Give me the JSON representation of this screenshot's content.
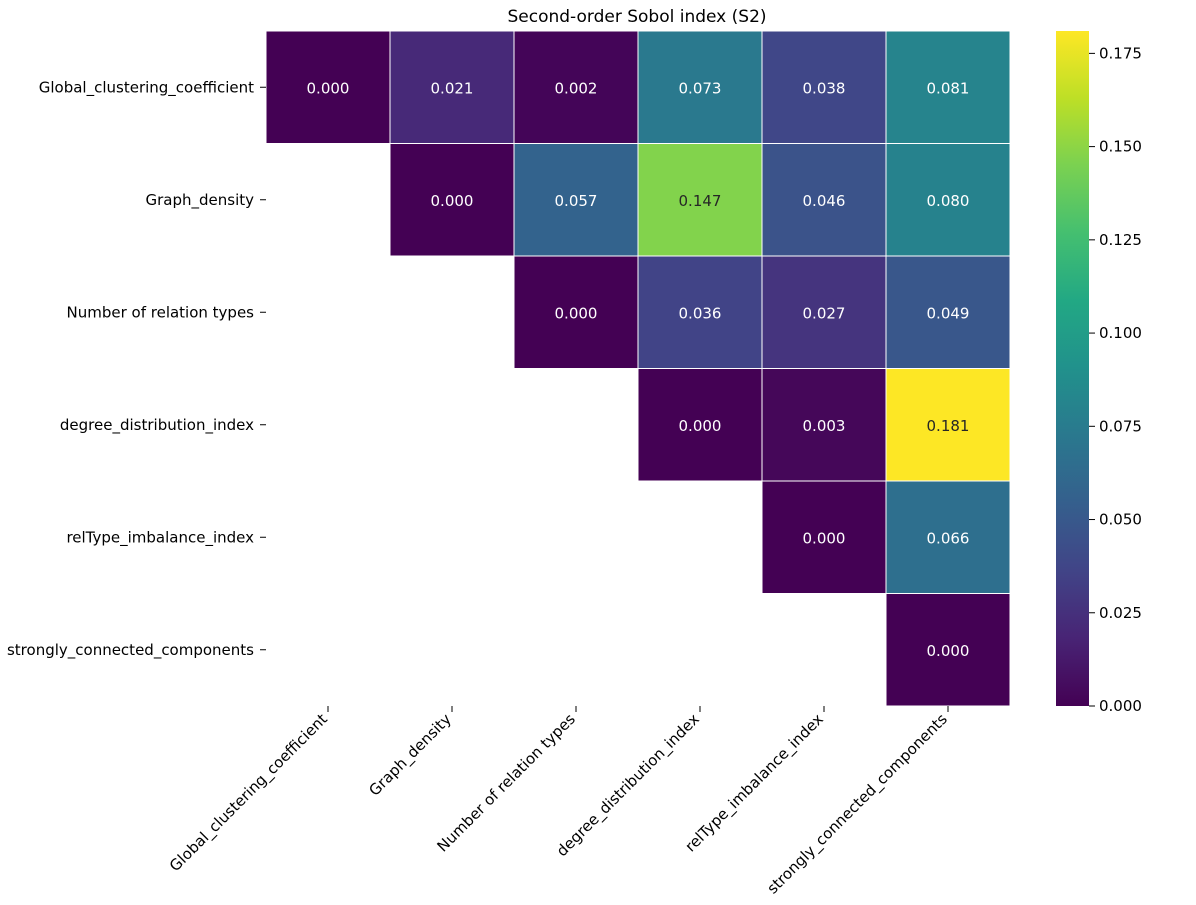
{
  "chart_data": {
    "type": "heatmap",
    "title": "Second-order Sobol index (S2)",
    "xlabel": "",
    "ylabel": "",
    "rows": [
      "Global_clustering_coefficient",
      "Graph_density",
      "Number of relation types",
      "degree_distribution_index",
      "relType_imbalance_index",
      "strongly_connected_components"
    ],
    "columns": [
      "Global_clustering_coefficient",
      "Graph_density",
      "Number of relation types",
      "degree_distribution_index",
      "relType_imbalance_index",
      "strongly_connected_components"
    ],
    "values": [
      [
        0.0,
        0.021,
        0.002,
        0.073,
        0.038,
        0.081
      ],
      [
        null,
        0.0,
        0.057,
        0.147,
        0.046,
        0.08
      ],
      [
        null,
        null,
        0.0,
        0.036,
        0.027,
        0.049
      ],
      [
        null,
        null,
        null,
        0.0,
        0.003,
        0.181
      ],
      [
        null,
        null,
        null,
        null,
        0.0,
        0.066
      ],
      [
        null,
        null,
        null,
        null,
        null,
        0.0
      ]
    ],
    "annotations": [
      [
        "0.000",
        "0.021",
        "0.002",
        "0.073",
        "0.038",
        "0.081"
      ],
      [
        null,
        "0.000",
        "0.057",
        "0.147",
        "0.046",
        "0.080"
      ],
      [
        null,
        null,
        "0.000",
        "0.036",
        "0.027",
        "0.049"
      ],
      [
        null,
        null,
        null,
        "0.000",
        "0.003",
        "0.181"
      ],
      [
        null,
        null,
        null,
        null,
        "0.000",
        "0.066"
      ],
      [
        null,
        null,
        null,
        null,
        null,
        "0.000"
      ]
    ],
    "colormap": "viridis",
    "colorbar": {
      "vmin": 0.0,
      "vmax": 0.181,
      "ticks": [
        0.0,
        0.025,
        0.05,
        0.075,
        0.1,
        0.125,
        0.15,
        0.175
      ],
      "tick_labels": [
        "0.000",
        "0.025",
        "0.050",
        "0.075",
        "0.100",
        "0.125",
        "0.150",
        "0.175"
      ]
    }
  }
}
